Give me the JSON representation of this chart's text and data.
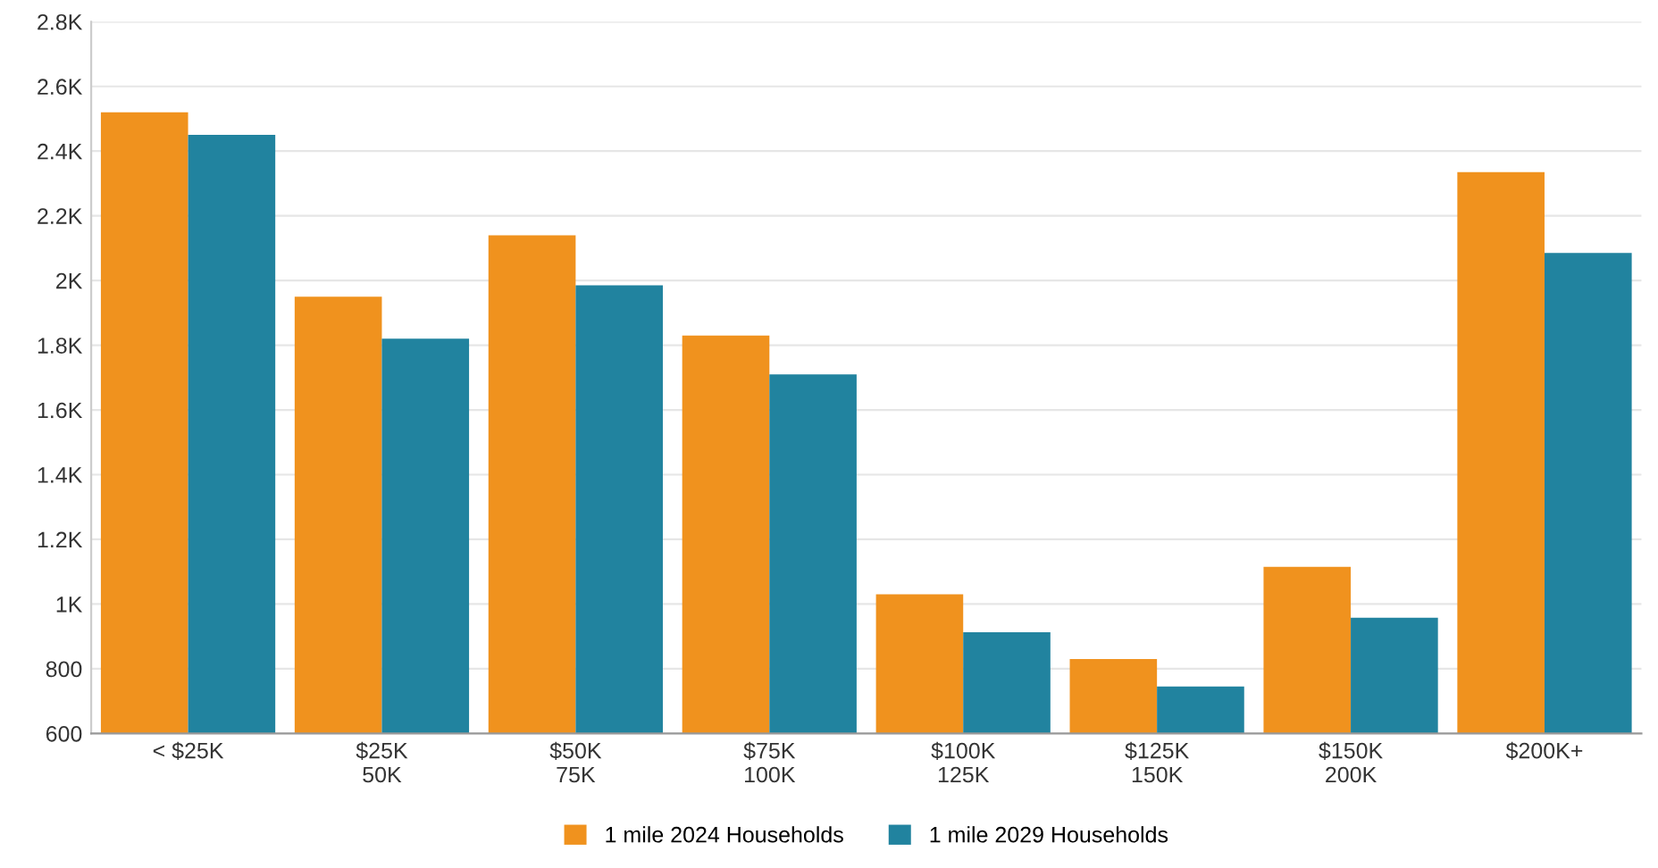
{
  "chart_data": {
    "type": "bar",
    "categories": [
      "< $25K",
      "$25K\n50K",
      "$50K\n75K",
      "$75K\n100K",
      "$100K\n125K",
      "$125K\n150K",
      "$150K\n200K",
      "$200K+"
    ],
    "series": [
      {
        "name": "1 mile 2024 Households",
        "color": "#f0921e",
        "values": [
          2520,
          1950,
          2140,
          1830,
          1030,
          830,
          1115,
          2335
        ]
      },
      {
        "name": "1 mile 2029 Households",
        "color": "#21839f",
        "values": [
          2450,
          1820,
          1985,
          1710,
          913,
          745,
          958,
          2085
        ]
      }
    ],
    "ylim": [
      600,
      2800
    ],
    "yticks": [
      600,
      800,
      {
        "value": 1000,
        "label": "1K"
      },
      {
        "value": 1200,
        "label": "1.2K"
      },
      {
        "value": 1400,
        "label": "1.4K"
      },
      {
        "value": 1600,
        "label": "1.6K"
      },
      {
        "value": 1800,
        "label": "1.8K"
      },
      {
        "value": 2000,
        "label": "2K"
      },
      {
        "value": 2200,
        "label": "2.2K"
      },
      {
        "value": 2400,
        "label": "2.4K"
      },
      {
        "value": 2600,
        "label": "2.6K"
      },
      {
        "value": 2800,
        "label": "2.8K"
      }
    ],
    "grid": "y",
    "legend": "bottom"
  }
}
